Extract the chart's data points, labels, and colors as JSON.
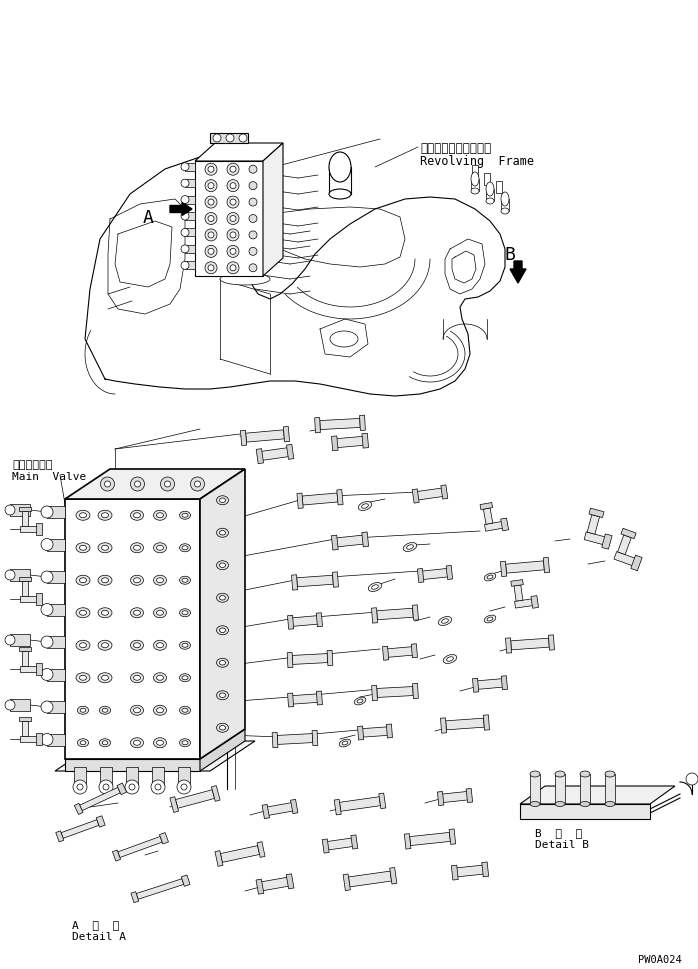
{
  "bg_color": "#ffffff",
  "line_color": "#000000",
  "fig_width": 6.98,
  "fig_height": 9.7,
  "dpi": 100,
  "label_revolving_frame_jp": "レボルビングフレーム",
  "label_revolving_frame_en": "Revolving  Frame",
  "label_main_valve_jp": "メインバルブ",
  "label_main_valve_en": "Main  Valve",
  "label_detail_a_jp": "A  詳  細",
  "label_detail_a_en": "Detail A",
  "label_detail_b_jp": "B  詳  細",
  "label_detail_b_en": "Detail B",
  "label_A": "A",
  "label_B": "B",
  "part_number": "PW0A024"
}
